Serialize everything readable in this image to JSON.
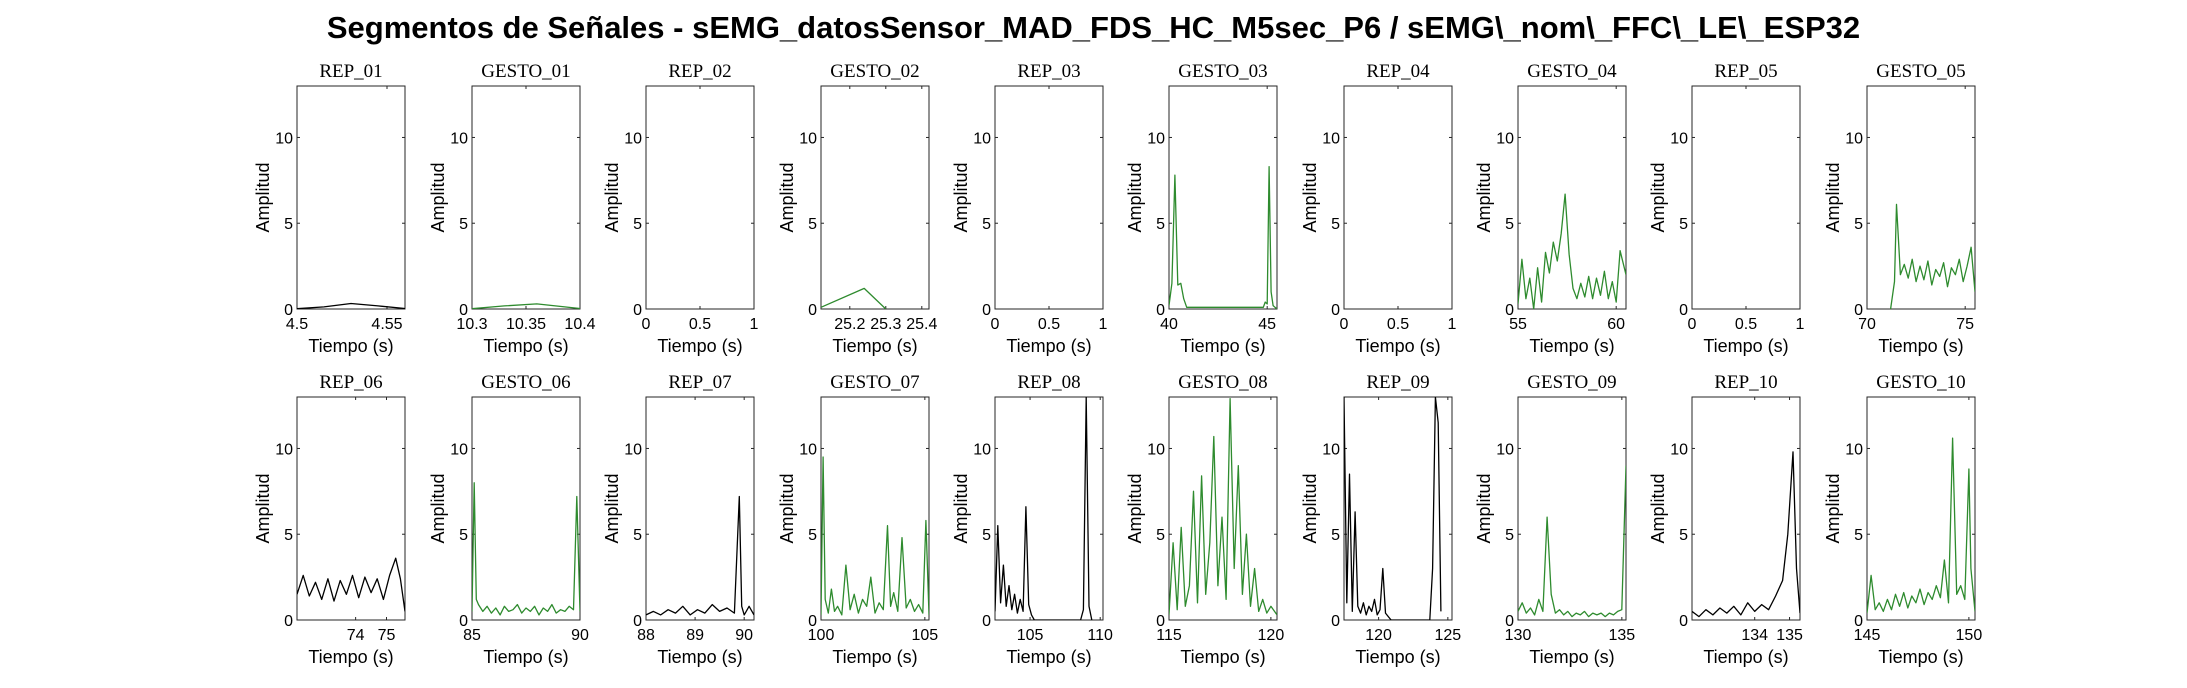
{
  "title": "Segmentos de Señales - sEMG_datosSensor_MAD_FDS_HC_M5sec_P6 / sEMG\\_nom\\_FFC\\_LE\\_ESP32",
  "colors": {
    "rep": "#000000",
    "gesto": "#2e8b2e"
  },
  "chart_data": [
    {
      "type": "line",
      "title": "REP_01",
      "xlabel": "Tiempo (s)",
      "ylabel": "Amplitud",
      "xlim": [
        4.5,
        4.56
      ],
      "ylim": [
        0,
        13
      ],
      "xticks": [
        4.5,
        4.55
      ],
      "xticklabels": [
        "4.5",
        "4.55"
      ],
      "yticks": [
        0,
        5,
        10
      ],
      "yticklabels": [
        "0",
        "5",
        "10"
      ],
      "color": "rep",
      "x": [
        4.5,
        4.515,
        4.53,
        4.545,
        4.56
      ],
      "y": [
        0.02,
        0.12,
        0.32,
        0.18,
        0.03
      ]
    },
    {
      "type": "line",
      "title": "GESTO_01",
      "xlabel": "Tiempo (s)",
      "ylabel": "Amplitud",
      "xlim": [
        10.3,
        10.4
      ],
      "ylim": [
        0,
        13
      ],
      "xticks": [
        10.3,
        10.35,
        10.4
      ],
      "xticklabels": [
        "10.3",
        "10.35",
        "10.4"
      ],
      "yticks": [
        0,
        5,
        10
      ],
      "yticklabels": [
        "0",
        "5",
        "10"
      ],
      "color": "gesto",
      "x": [
        10.3,
        10.33,
        10.36,
        10.4
      ],
      "y": [
        0.02,
        0.18,
        0.3,
        0.03
      ]
    },
    {
      "type": "line",
      "title": "REP_02",
      "xlabel": "Tiempo (s)",
      "ylabel": "Amplitud",
      "xlim": [
        0,
        1
      ],
      "ylim": [
        0,
        13
      ],
      "xticks": [
        0,
        0.5,
        1
      ],
      "xticklabels": [
        "0",
        "0.5",
        "1"
      ],
      "yticks": [
        0,
        5,
        10
      ],
      "yticklabels": [
        "0",
        "5",
        "10"
      ],
      "color": "rep",
      "x": [],
      "y": []
    },
    {
      "type": "line",
      "title": "GESTO_02",
      "xlabel": "Tiempo (s)",
      "ylabel": "Amplitud",
      "xlim": [
        25.12,
        25.42
      ],
      "ylim": [
        0,
        13
      ],
      "xticks": [
        25.2,
        25.3,
        25.4
      ],
      "xticklabels": [
        "25.2",
        "25.3",
        "25.4"
      ],
      "yticks": [
        0,
        5,
        10
      ],
      "yticklabels": [
        "0",
        "5",
        "10"
      ],
      "color": "gesto",
      "x": [
        25.12,
        25.24,
        25.3
      ],
      "y": [
        0.1,
        1.2,
        0.0
      ]
    },
    {
      "type": "line",
      "title": "REP_03",
      "xlabel": "Tiempo (s)",
      "ylabel": "Amplitud",
      "xlim": [
        0,
        1
      ],
      "ylim": [
        0,
        13
      ],
      "xticks": [
        0,
        0.5,
        1
      ],
      "xticklabels": [
        "0",
        "0.5",
        "1"
      ],
      "yticks": [
        0,
        5,
        10
      ],
      "yticklabels": [
        "0",
        "5",
        "10"
      ],
      "color": "rep",
      "x": [],
      "y": []
    },
    {
      "type": "line",
      "title": "GESTO_03",
      "xlabel": "Tiempo (s)",
      "ylabel": "Amplitud",
      "xlim": [
        40,
        45.5
      ],
      "ylim": [
        0,
        13
      ],
      "xticks": [
        40,
        45
      ],
      "xticklabels": [
        "40",
        "45"
      ],
      "yticks": [
        0,
        5,
        10
      ],
      "yticklabels": [
        "0",
        "5",
        "10"
      ],
      "color": "gesto",
      "x": [
        40,
        40.15,
        40.3,
        40.45,
        40.6,
        40.75,
        40.9,
        44.8,
        44.9,
        45.0,
        45.1,
        45.2,
        45.3,
        45.4,
        45.5
      ],
      "y": [
        0.2,
        1.5,
        7.8,
        1.4,
        1.5,
        0.6,
        0.1,
        0.1,
        0.4,
        0.3,
        8.3,
        1.0,
        0.2,
        0.1,
        0.0
      ]
    },
    {
      "type": "line",
      "title": "REP_04",
      "xlabel": "Tiempo (s)",
      "ylabel": "Amplitud",
      "xlim": [
        0,
        1
      ],
      "ylim": [
        0,
        13
      ],
      "xticks": [
        0,
        0.5,
        1
      ],
      "xticklabels": [
        "0",
        "0.5",
        "1"
      ],
      "yticks": [
        0,
        5,
        10
      ],
      "yticklabels": [
        "0",
        "5",
        "10"
      ],
      "color": "rep",
      "x": [],
      "y": []
    },
    {
      "type": "line",
      "title": "GESTO_04",
      "xlabel": "Tiempo (s)",
      "ylabel": "Amplitud",
      "xlim": [
        55,
        60.5
      ],
      "ylim": [
        0,
        13
      ],
      "xticks": [
        55,
        60
      ],
      "xticklabels": [
        "55",
        "60"
      ],
      "yticks": [
        0,
        5,
        10
      ],
      "yticklabels": [
        "0",
        "5",
        "10"
      ],
      "color": "gesto",
      "x": [
        55,
        55.2,
        55.4,
        55.6,
        55.8,
        56.0,
        56.2,
        56.4,
        56.6,
        56.8,
        57.0,
        57.2,
        57.4,
        57.6,
        57.8,
        58.0,
        58.2,
        58.4,
        58.6,
        58.8,
        59.0,
        59.2,
        59.4,
        59.6,
        59.8,
        60.0,
        60.2,
        60.5
      ],
      "y": [
        0.3,
        2.9,
        0.6,
        1.8,
        0.0,
        2.4,
        0.4,
        3.3,
        2.1,
        3.9,
        2.8,
        4.4,
        6.7,
        3.2,
        1.2,
        0.6,
        1.5,
        0.7,
        1.9,
        0.6,
        1.8,
        0.8,
        2.2,
        0.6,
        1.6,
        0.4,
        3.4,
        2.0
      ]
    },
    {
      "type": "line",
      "title": "REP_05",
      "xlabel": "Tiempo (s)",
      "ylabel": "Amplitud",
      "xlim": [
        0,
        1
      ],
      "ylim": [
        0,
        13
      ],
      "xticks": [
        0,
        0.5,
        1
      ],
      "xticklabels": [
        "0",
        "0.5",
        "1"
      ],
      "yticks": [
        0,
        5,
        10
      ],
      "yticklabels": [
        "0",
        "5",
        "10"
      ],
      "color": "rep",
      "x": [],
      "y": []
    },
    {
      "type": "line",
      "title": "GESTO_05",
      "xlabel": "Tiempo (s)",
      "ylabel": "Amplitud",
      "xlim": [
        70,
        75.5
      ],
      "ylim": [
        0,
        13
      ],
      "xticks": [
        70,
        75
      ],
      "xticklabels": [
        "70",
        "75"
      ],
      "yticks": [
        0,
        5,
        10
      ],
      "yticklabels": [
        "0",
        "5",
        "10"
      ],
      "color": "gesto",
      "x": [
        71.2,
        71.4,
        71.5,
        71.7,
        71.9,
        72.1,
        72.3,
        72.5,
        72.7,
        72.9,
        73.1,
        73.3,
        73.5,
        73.7,
        73.9,
        74.1,
        74.3,
        74.5,
        74.7,
        74.9,
        75.1,
        75.3,
        75.5
      ],
      "y": [
        0.0,
        1.6,
        6.1,
        2.0,
        2.6,
        1.8,
        2.9,
        1.6,
        2.5,
        1.7,
        2.8,
        1.4,
        2.3,
        1.9,
        2.7,
        1.3,
        2.4,
        2.0,
        2.9,
        1.6,
        2.5,
        3.6,
        1.0
      ]
    },
    {
      "type": "line",
      "title": "REP_06",
      "xlabel": "Tiempo (s)",
      "ylabel": "Amplitud",
      "xlim": [
        72.1,
        75.6
      ],
      "ylim": [
        0,
        13
      ],
      "xticks": [
        74,
        75
      ],
      "xticklabels": [
        "74",
        "75"
      ],
      "yticks": [
        0,
        5,
        10
      ],
      "yticklabels": [
        "0",
        "5",
        "10"
      ],
      "color": "rep",
      "x": [
        72.1,
        72.3,
        72.5,
        72.7,
        72.9,
        73.1,
        73.3,
        73.5,
        73.7,
        73.9,
        74.1,
        74.3,
        74.5,
        74.7,
        74.9,
        75.1,
        75.3,
        75.45,
        75.6
      ],
      "y": [
        1.5,
        2.6,
        1.4,
        2.2,
        1.2,
        2.4,
        1.1,
        2.3,
        1.5,
        2.6,
        1.3,
        2.5,
        1.6,
        2.4,
        1.2,
        2.6,
        3.6,
        2.4,
        0.5
      ]
    },
    {
      "type": "line",
      "title": "GESTO_06",
      "xlabel": "Tiempo (s)",
      "ylabel": "Amplitud",
      "xlim": [
        85,
        90
      ],
      "ylim": [
        0,
        13
      ],
      "xticks": [
        85,
        90
      ],
      "xticklabels": [
        "85",
        "90"
      ],
      "yticks": [
        0,
        5,
        10
      ],
      "yticklabels": [
        "0",
        "5",
        "10"
      ],
      "color": "gesto",
      "x": [
        85,
        85.1,
        85.2,
        85.3,
        85.5,
        85.7,
        85.9,
        86.1,
        86.3,
        86.5,
        86.7,
        86.9,
        87.1,
        87.3,
        87.5,
        87.7,
        87.9,
        88.1,
        88.3,
        88.5,
        88.7,
        88.9,
        89.1,
        89.3,
        89.5,
        89.7,
        89.85,
        90
      ],
      "y": [
        0.5,
        8.0,
        1.2,
        0.9,
        0.5,
        0.8,
        0.4,
        0.7,
        0.3,
        0.8,
        0.5,
        0.6,
        0.9,
        0.4,
        0.7,
        0.5,
        0.8,
        0.3,
        0.7,
        0.5,
        0.9,
        0.4,
        0.6,
        0.5,
        0.8,
        0.6,
        7.2,
        0.5
      ]
    },
    {
      "type": "line",
      "title": "REP_07",
      "xlabel": "Tiempo (s)",
      "ylabel": "Amplitud",
      "xlim": [
        88,
        90.2
      ],
      "ylim": [
        0,
        13
      ],
      "xticks": [
        88,
        89,
        90
      ],
      "xticklabels": [
        "88",
        "89",
        "90"
      ],
      "yticks": [
        0,
        5,
        10
      ],
      "yticklabels": [
        "0",
        "5",
        "10"
      ],
      "color": "rep",
      "x": [
        88,
        88.15,
        88.3,
        88.45,
        88.6,
        88.75,
        88.9,
        89.05,
        89.2,
        89.35,
        89.5,
        89.65,
        89.8,
        89.9,
        89.95,
        90.0,
        90.1,
        90.2
      ],
      "y": [
        0.3,
        0.5,
        0.3,
        0.6,
        0.4,
        0.8,
        0.3,
        0.6,
        0.4,
        0.9,
        0.5,
        0.7,
        0.4,
        7.2,
        0.8,
        0.3,
        0.8,
        0.3
      ]
    },
    {
      "type": "line",
      "title": "GESTO_07",
      "xlabel": "Tiempo (s)",
      "ylabel": "Amplitud",
      "xlim": [
        100,
        105.2
      ],
      "ylim": [
        0,
        13
      ],
      "xticks": [
        100,
        105
      ],
      "xticklabels": [
        "100",
        "105"
      ],
      "yticks": [
        0,
        5,
        10
      ],
      "yticklabels": [
        "0",
        "5",
        "10"
      ],
      "color": "gesto",
      "x": [
        100,
        100.1,
        100.2,
        100.35,
        100.5,
        100.65,
        100.8,
        101.0,
        101.2,
        101.4,
        101.6,
        101.8,
        102.0,
        102.2,
        102.4,
        102.6,
        102.8,
        103.0,
        103.2,
        103.35,
        103.5,
        103.7,
        103.9,
        104.1,
        104.3,
        104.5,
        104.7,
        104.9,
        105.05,
        105.2
      ],
      "y": [
        0.3,
        9.5,
        1.2,
        0.4,
        1.8,
        0.5,
        0.8,
        0.3,
        3.2,
        0.6,
        1.5,
        0.4,
        1.2,
        0.8,
        2.5,
        0.4,
        1.0,
        0.6,
        5.5,
        0.8,
        1.6,
        0.5,
        4.8,
        0.7,
        1.2,
        0.5,
        0.9,
        0.4,
        5.8,
        0.3
      ]
    },
    {
      "type": "line",
      "title": "REP_08",
      "xlabel": "Tiempo (s)",
      "ylabel": "Amplitud",
      "xlim": [
        102.5,
        110.2
      ],
      "ylim": [
        0,
        13
      ],
      "xticks": [
        105,
        110
      ],
      "xticklabels": [
        "105",
        "110"
      ],
      "yticks": [
        0,
        5,
        10
      ],
      "yticklabels": [
        "0",
        "5",
        "10"
      ],
      "color": "rep",
      "x": [
        102.5,
        102.7,
        102.9,
        103.1,
        103.3,
        103.5,
        103.7,
        103.9,
        104.1,
        104.3,
        104.5,
        104.7,
        104.9,
        105.1,
        105.3,
        105.5,
        108.6,
        108.8,
        109.0,
        109.2,
        109.4
      ],
      "y": [
        0.5,
        5.5,
        1.0,
        3.2,
        0.8,
        2.0,
        0.6,
        1.5,
        0.4,
        1.2,
        0.5,
        6.6,
        0.9,
        0.3,
        0.0,
        0.0,
        0.0,
        0.6,
        13.0,
        0.8,
        0.0
      ]
    },
    {
      "type": "line",
      "title": "GESTO_08",
      "xlabel": "Tiempo (s)",
      "ylabel": "Amplitud",
      "xlim": [
        115,
        120.3
      ],
      "ylim": [
        0,
        13
      ],
      "xticks": [
        115,
        120
      ],
      "xticklabels": [
        "115",
        "120"
      ],
      "yticks": [
        0,
        5,
        10
      ],
      "yticklabels": [
        "0",
        "5",
        "10"
      ],
      "color": "gesto",
      "x": [
        115,
        115.2,
        115.4,
        115.6,
        115.8,
        116.0,
        116.2,
        116.4,
        116.6,
        116.8,
        117.0,
        117.2,
        117.4,
        117.6,
        117.8,
        118.0,
        118.2,
        118.4,
        118.6,
        118.8,
        119.0,
        119.2,
        119.4,
        119.6,
        119.8,
        120.0,
        120.3
      ],
      "y": [
        0.3,
        4.5,
        0.6,
        5.4,
        0.8,
        2.0,
        7.5,
        1.0,
        8.4,
        1.5,
        4.5,
        10.7,
        2.0,
        6.0,
        1.2,
        12.9,
        3.0,
        9.0,
        1.5,
        5.0,
        0.8,
        3.0,
        0.5,
        1.2,
        0.4,
        0.8,
        0.3
      ]
    },
    {
      "type": "line",
      "title": "REP_09",
      "xlabel": "Tiempo (s)",
      "ylabel": "Amplitud",
      "xlim": [
        117.5,
        125.3
      ],
      "ylim": [
        0,
        13
      ],
      "xticks": [
        120,
        125
      ],
      "xticklabels": [
        "120",
        "125"
      ],
      "yticks": [
        0,
        5,
        10
      ],
      "yticklabels": [
        "0",
        "5",
        "10"
      ],
      "color": "rep",
      "x": [
        117.5,
        117.7,
        117.9,
        118.1,
        118.3,
        118.5,
        118.7,
        118.9,
        119.1,
        119.3,
        119.5,
        119.7,
        119.9,
        120.1,
        120.3,
        120.5,
        120.7,
        120.9,
        123.7,
        123.9,
        124.1,
        124.3,
        124.5
      ],
      "y": [
        13.0,
        1.0,
        8.5,
        0.5,
        6.3,
        0.8,
        0.4,
        1.0,
        0.3,
        0.8,
        0.5,
        1.2,
        0.3,
        0.6,
        3.0,
        0.4,
        0.2,
        0.0,
        0.0,
        3.0,
        13.0,
        11.5,
        0.5
      ]
    },
    {
      "type": "line",
      "title": "GESTO_09",
      "xlabel": "Tiempo (s)",
      "ylabel": "Amplitud",
      "xlim": [
        130,
        135.2
      ],
      "ylim": [
        0,
        13
      ],
      "xticks": [
        130,
        135
      ],
      "xticklabels": [
        "130",
        "135"
      ],
      "yticks": [
        0,
        5,
        10
      ],
      "yticklabels": [
        "0",
        "5",
        "10"
      ],
      "color": "gesto",
      "x": [
        130,
        130.2,
        130.4,
        130.6,
        130.8,
        131.0,
        131.2,
        131.4,
        131.6,
        131.8,
        132.0,
        132.2,
        132.4,
        132.6,
        132.8,
        133.0,
        133.2,
        133.4,
        133.6,
        133.8,
        134.0,
        134.2,
        134.4,
        134.6,
        134.8,
        135.0,
        135.2
      ],
      "y": [
        0.5,
        1.0,
        0.4,
        0.7,
        0.3,
        1.2,
        0.5,
        6.0,
        1.5,
        0.4,
        0.6,
        0.3,
        0.5,
        0.2,
        0.4,
        0.3,
        0.5,
        0.2,
        0.4,
        0.3,
        0.4,
        0.2,
        0.4,
        0.3,
        0.5,
        0.6,
        9.0
      ]
    },
    {
      "type": "line",
      "title": "REP_10",
      "xlabel": "Tiempo (s)",
      "ylabel": "Amplitud",
      "xlim": [
        132.2,
        135.3
      ],
      "ylim": [
        0,
        13
      ],
      "xticks": [
        134,
        135
      ],
      "xticklabels": [
        "134",
        "135"
      ],
      "yticks": [
        0,
        5,
        10
      ],
      "yticklabels": [
        "0",
        "5",
        "10"
      ],
      "color": "rep",
      "x": [
        132.2,
        132.4,
        132.6,
        132.8,
        133.0,
        133.2,
        133.4,
        133.6,
        133.8,
        134.0,
        134.2,
        134.4,
        134.6,
        134.8,
        134.95,
        135.1,
        135.2,
        135.3
      ],
      "y": [
        0.5,
        0.2,
        0.6,
        0.3,
        0.7,
        0.4,
        0.8,
        0.3,
        1.0,
        0.5,
        0.9,
        0.6,
        1.4,
        2.3,
        5.0,
        9.8,
        3.0,
        0.4
      ]
    },
    {
      "type": "line",
      "title": "GESTO_10",
      "xlabel": "Tiempo (s)",
      "ylabel": "Amplitud",
      "xlim": [
        145,
        150.3
      ],
      "ylim": [
        0,
        13
      ],
      "xticks": [
        145,
        150
      ],
      "xticklabels": [
        "145",
        "150"
      ],
      "yticks": [
        0,
        5,
        10
      ],
      "yticklabels": [
        "0",
        "5",
        "10"
      ],
      "color": "gesto",
      "x": [
        145,
        145.2,
        145.4,
        145.6,
        145.8,
        146.0,
        146.2,
        146.4,
        146.6,
        146.8,
        147.0,
        147.2,
        147.4,
        147.6,
        147.8,
        148.0,
        148.2,
        148.4,
        148.6,
        148.8,
        149.0,
        149.2,
        149.4,
        149.6,
        149.8,
        150.0,
        150.1,
        150.3
      ],
      "y": [
        0.4,
        2.6,
        0.6,
        1.0,
        0.5,
        1.2,
        0.6,
        1.5,
        0.8,
        1.6,
        0.7,
        1.4,
        1.0,
        1.8,
        0.9,
        1.6,
        1.2,
        2.0,
        1.3,
        3.5,
        1.0,
        10.6,
        1.5,
        2.0,
        1.2,
        8.8,
        3.0,
        0.5
      ]
    }
  ]
}
